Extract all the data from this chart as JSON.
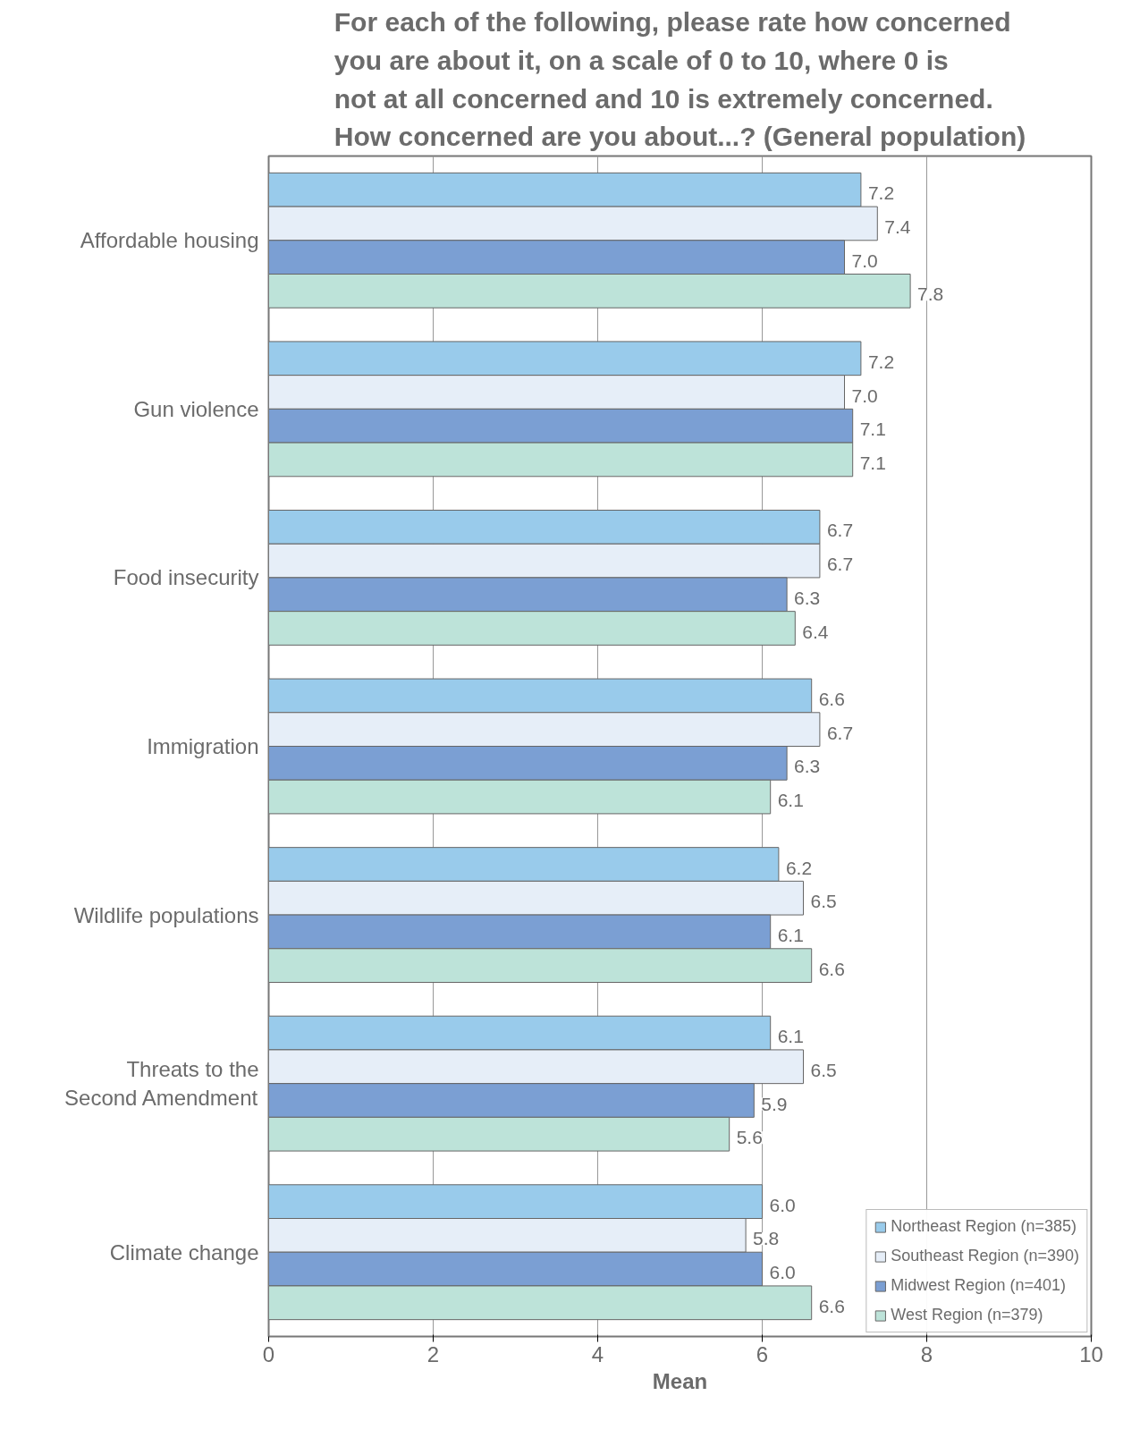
{
  "chart_data": {
    "type": "bar",
    "orientation": "horizontal",
    "title": "For each of the following, please rate how concerned you are about it, on a scale of 0 to 10, where 0 is not at all concerned and 10 is extremely concerned. How concerned are you about...? (General population)",
    "xlabel": "Mean",
    "categories": [
      "Affordable housing",
      "Gun violence",
      "Food insecurity",
      "Immigration",
      "Wildlife populations",
      "Threats to the Second Amendment",
      "Climate change"
    ],
    "series": [
      {
        "name": "Northeast Region (n=385)",
        "color": "#99cbeb",
        "values": [
          7.2,
          7.2,
          6.7,
          6.6,
          6.2,
          6.1,
          6.0
        ],
        "value_labels": [
          "7.2",
          "7.2",
          "6.7",
          "6.6",
          "6.2",
          "6.1",
          "6.0"
        ]
      },
      {
        "name": "Southeast Region (n=390)",
        "color": "#e6eef8",
        "values": [
          7.4,
          7.0,
          6.7,
          6.7,
          6.5,
          6.5,
          5.8
        ],
        "value_labels": [
          "7.4",
          "7.0",
          "6.7",
          "6.7",
          "6.5",
          "6.5",
          "5.8"
        ]
      },
      {
        "name": "Midwest Region (n=401)",
        "color": "#7b9fd3",
        "values": [
          7.0,
          7.1,
          6.3,
          6.3,
          6.1,
          5.9,
          6.0
        ],
        "value_labels": [
          "7.0",
          "7.1",
          "6.3",
          "6.3",
          "6.1",
          "5.9",
          "6.0"
        ]
      },
      {
        "name": "West Region (n=379)",
        "color": "#bde3d9",
        "values": [
          7.8,
          7.1,
          6.4,
          6.1,
          6.6,
          5.6,
          6.6
        ],
        "value_labels": [
          "7.8",
          "7.1",
          "6.4",
          "6.1",
          "6.6",
          "5.6",
          "6.6"
        ]
      }
    ],
    "xlim": [
      0,
      10
    ],
    "xticks": [
      0,
      2,
      4,
      6,
      8,
      10
    ],
    "grid": "x",
    "legend": "bottom right"
  }
}
